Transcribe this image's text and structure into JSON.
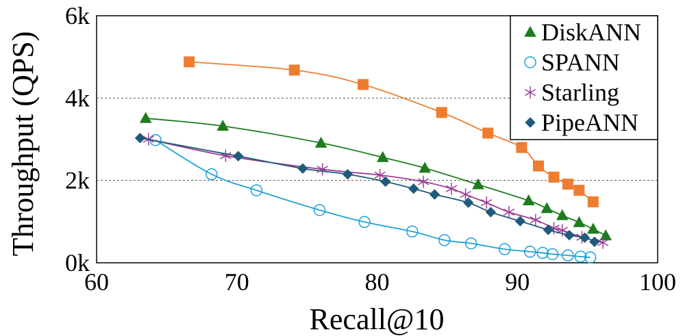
{
  "chart_data": {
    "type": "line",
    "title": "",
    "xlabel": "Recall@10",
    "ylabel": "Throughput (QPS)",
    "xlim": [
      60,
      100
    ],
    "ylim": [
      0,
      6000
    ],
    "x_ticks": [
      60,
      70,
      80,
      90,
      100
    ],
    "x_tick_labels": [
      "60",
      "70",
      "80",
      "90",
      "100"
    ],
    "y_ticks": [
      0,
      2000,
      4000,
      6000
    ],
    "y_tick_labels": [
      "0k",
      "2k",
      "4k",
      "6k"
    ],
    "gridlines": [
      2000,
      4000
    ],
    "legend_position": "top-right",
    "series": [
      {
        "name": "unlabeled",
        "in_legend": false,
        "color": "#ED7D31",
        "marker": "square",
        "x": [
          66.6,
          74.1,
          79.0,
          84.6,
          87.9,
          90.3,
          91.5,
          92.6,
          93.6,
          94.4,
          95.4
        ],
        "y": [
          4880,
          4680,
          4330,
          3650,
          3150,
          2800,
          2350,
          2080,
          1910,
          1760,
          1480
        ]
      },
      {
        "name": "DiskANN",
        "in_legend": true,
        "color": "#1E7B1E",
        "marker": "triangle",
        "x": [
          63.5,
          69.0,
          76.0,
          80.4,
          83.4,
          87.2,
          90.8,
          92.1,
          93.2,
          94.4,
          95.4,
          96.3
        ],
        "y": [
          3510,
          3320,
          2910,
          2560,
          2300,
          1900,
          1510,
          1320,
          1150,
          980,
          820,
          660
        ]
      },
      {
        "name": "SPANN",
        "in_legend": true,
        "color": "#1BA1D9",
        "marker": "circle-open",
        "x": [
          64.2,
          68.2,
          71.4,
          75.9,
          79.1,
          82.5,
          84.8,
          86.7,
          89.1,
          90.9,
          91.8,
          92.5,
          93.6,
          94.5,
          95.2
        ],
        "y": [
          2980,
          2150,
          1760,
          1280,
          990,
          760,
          550,
          470,
          330,
          270,
          240,
          210,
          180,
          150,
          130
        ]
      },
      {
        "name": "Starling",
        "in_legend": true,
        "color": "#9B3D96",
        "marker": "asterisk",
        "x": [
          63.7,
          69.2,
          76.1,
          80.2,
          83.3,
          85.3,
          86.3,
          87.8,
          89.4,
          91.3,
          92.6,
          93.2,
          94.6,
          96.1
        ],
        "y": [
          3000,
          2600,
          2270,
          2130,
          1970,
          1800,
          1660,
          1460,
          1230,
          1040,
          840,
          790,
          620,
          490
        ]
      },
      {
        "name": "PipeANN",
        "in_legend": true,
        "color": "#1F5A7A",
        "marker": "diamond",
        "x": [
          63.1,
          70.1,
          74.7,
          77.9,
          80.6,
          82.6,
          84.1,
          86.5,
          88.1,
          90.2,
          92.2,
          93.7,
          94.8,
          95.5
        ],
        "y": [
          3030,
          2590,
          2290,
          2150,
          1970,
          1800,
          1660,
          1460,
          1230,
          1010,
          800,
          670,
          610,
          510
        ]
      }
    ]
  }
}
